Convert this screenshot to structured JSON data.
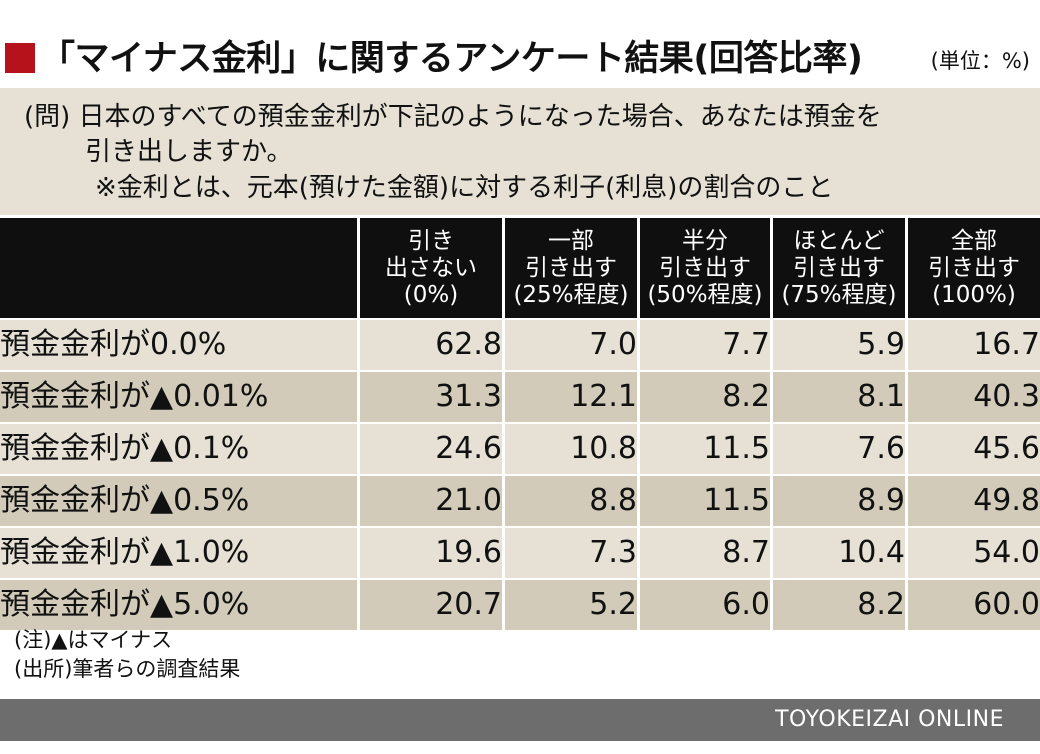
{
  "title": "「マイナス金利」に関するアンケート結果(回答比率)",
  "unit": "(単位：%)",
  "question": {
    "line1": "(問) 日本のすべての預金金利が下記のようになった場合、あなたは預金を",
    "line2": "引き出しますか。",
    "line3": "※金利とは、元本(預けた金額)に対する利子(利息)の割合のこと"
  },
  "chart_data": {
    "type": "table",
    "columns": [
      [
        "引き",
        "出さない",
        "(0%)"
      ],
      [
        "一部",
        "引き出す",
        "(25%程度)"
      ],
      [
        "半分",
        "引き出す",
        "(50%程度)"
      ],
      [
        "ほとんど",
        "引き出す",
        "(75%程度)"
      ],
      [
        "全部",
        "引き出す",
        "(100%)"
      ]
    ],
    "rows": [
      {
        "label": "預金金利が0.0%",
        "values": [
          "62.8",
          "7.0",
          "7.7",
          "5.9",
          "16.7"
        ]
      },
      {
        "label": "預金金利が▲0.01%",
        "values": [
          "31.3",
          "12.1",
          "8.2",
          "8.1",
          "40.3"
        ]
      },
      {
        "label": "預金金利が▲0.1%",
        "values": [
          "24.6",
          "10.8",
          "11.5",
          "7.6",
          "45.6"
        ]
      },
      {
        "label": "預金金利が▲0.5%",
        "values": [
          "21.0",
          "8.8",
          "11.5",
          "8.9",
          "49.8"
        ]
      },
      {
        "label": "預金金利が▲1.0%",
        "values": [
          "19.6",
          "7.3",
          "8.7",
          "10.4",
          "54.0"
        ]
      },
      {
        "label": "預金金利が▲5.0%",
        "values": [
          "20.7",
          "5.2",
          "6.0",
          "8.2",
          "60.0"
        ]
      }
    ]
  },
  "notes": {
    "note1": "(注)▲はマイナス",
    "note2": "(出所)筆者らの調査結果"
  },
  "footer": {
    "brand": "TOYOKEIZAI  ONLINE"
  },
  "colors": {
    "accent": "#b5121b",
    "header_bg": "#0f0f0f",
    "row_light": "#e6e1d4",
    "row_dark": "#d2cbba",
    "footer_bg": "#6d6d6d"
  }
}
